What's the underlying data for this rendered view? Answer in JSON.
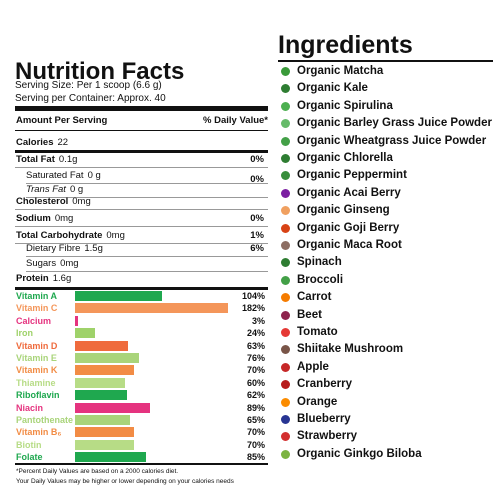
{
  "nutrition": {
    "title": "Nutrition Facts",
    "serving_size": "Serving Size: Per 1 scoop (6.6 g)",
    "servings": "Serving per Container: Approx. 40",
    "amount_header": "Amount Per Serving",
    "dv_header": "% Daily Value*",
    "rows": [
      {
        "label": "Calories",
        "amount": "22"
      },
      {
        "label": "Total Fat",
        "amount": "0.1g",
        "dv": "0%"
      },
      {
        "label": "Saturated Fat",
        "amount": "0 g",
        "dv": "0%"
      },
      {
        "label": "Trans Fat",
        "amount": "0 g"
      },
      {
        "label": "Cholesterol",
        "amount": "0mg"
      },
      {
        "label": "Sodium",
        "amount": "0mg",
        "dv": "0%"
      },
      {
        "label": "Total Carbohydrate",
        "amount": "0mg",
        "dv": "1%"
      },
      {
        "label": "Dietary Fibre",
        "amount": "1.5g",
        "dv": "6%"
      },
      {
        "label": "Sugars",
        "amount": "0mg"
      },
      {
        "label": "Protein",
        "amount": "1.6g"
      }
    ],
    "vitamins": {
      "names": [
        "Vitamin A",
        "Vitamin C",
        "Calcium",
        "Iron",
        "Vitamin D",
        "Vitamin E",
        "Vitamin K",
        "Thiamine",
        "Riboflavin",
        "Niacin",
        "Pantothenate",
        "Vitamin B₆",
        "Biotin",
        "Folate"
      ],
      "values": [
        104,
        182,
        3,
        24,
        63,
        76,
        70,
        60,
        62,
        89,
        65,
        70,
        70,
        85
      ],
      "value_labels": [
        "104%",
        "182%",
        "3%",
        "24%",
        "63%",
        "76%",
        "70%",
        "60%",
        "62%",
        "89%",
        "65%",
        "70%",
        "70%",
        "85%"
      ],
      "colors": [
        "#1fa84f",
        "#f4965a",
        "#e5337f",
        "#9fd26a",
        "#ef6b3d",
        "#a9d47a",
        "#f28c45",
        "#b7dc86",
        "#1fa84f",
        "#e5337f",
        "#a9d47a",
        "#f28c45",
        "#b7dc86",
        "#1fa84f"
      ]
    },
    "footnote": [
      "*Percent Daily Values are based on a 2000 calories diet.",
      "Your Daily Values may be higher or lower depending on your calories needs"
    ]
  },
  "ingredients": {
    "title": "Ingredients",
    "items": [
      "Organic Matcha",
      "Organic Kale",
      "Organic Spirulina",
      "Organic Barley Grass Juice Powder",
      "Organic Wheatgrass Juice Powder",
      "Organic Chlorella",
      "Organic Peppermint",
      "Organic Acai Berry",
      "Organic Ginseng",
      "Organic Goji Berry",
      "Organic Maca Root",
      "Spinach",
      "Broccoli",
      "Carrot",
      "Beet",
      "Tomato",
      "Shiitake Mushroom",
      "Apple",
      "Cranberry",
      "Orange",
      "Blueberry",
      "Strawberry",
      "Organic Ginkgo Biloba"
    ]
  }
}
